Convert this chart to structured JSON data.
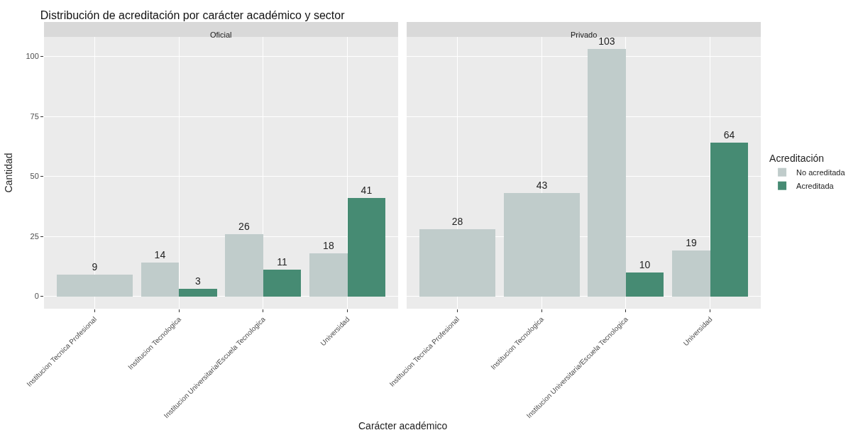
{
  "chart_data": [
    {
      "type": "bar",
      "title": "Distribución de acreditación por carácter académico y sector",
      "subtitle": "Oficial",
      "xlabel": "Carácter académico",
      "ylabel": "Cantidad",
      "categories": [
        "Institucion Tecnica Profesional",
        "Institucion Tecnologica",
        "Institucion Universitaria/Escuela Tecnologica",
        "Universidad"
      ],
      "series": [
        {
          "name": "No acreditada",
          "color": "#c0cccb",
          "values": [
            9,
            14,
            26,
            18
          ]
        },
        {
          "name": "Acreditada",
          "color": "#468b73",
          "values": [
            null,
            3,
            11,
            41
          ]
        }
      ],
      "ylim": [
        -5.15,
        108.15
      ],
      "yticks": [
        0,
        25,
        50,
        75,
        100
      ],
      "grid": true,
      "data_labels": true,
      "legend": "right"
    },
    {
      "type": "bar",
      "subtitle": "Privado",
      "legend_title": "Acreditación",
      "categories": [
        "Institucion Tecnica Profesional",
        "Institucion Tecnologica",
        "Institucion Universitaria/Escuela Tecnologica",
        "Universidad"
      ],
      "series": [
        {
          "name": "No acreditada",
          "color": "#c0cccb",
          "values": [
            28,
            43,
            103,
            19
          ]
        },
        {
          "name": "Acreditada",
          "color": "#468b73",
          "values": [
            null,
            null,
            10,
            64
          ]
        }
      ],
      "ylim": [
        -5.15,
        108.15
      ],
      "yticks": [
        0,
        25,
        50,
        75,
        100
      ],
      "grid": true,
      "data_labels": true,
      "legend": "right",
      "tick_labels": "x"
    }
  ]
}
